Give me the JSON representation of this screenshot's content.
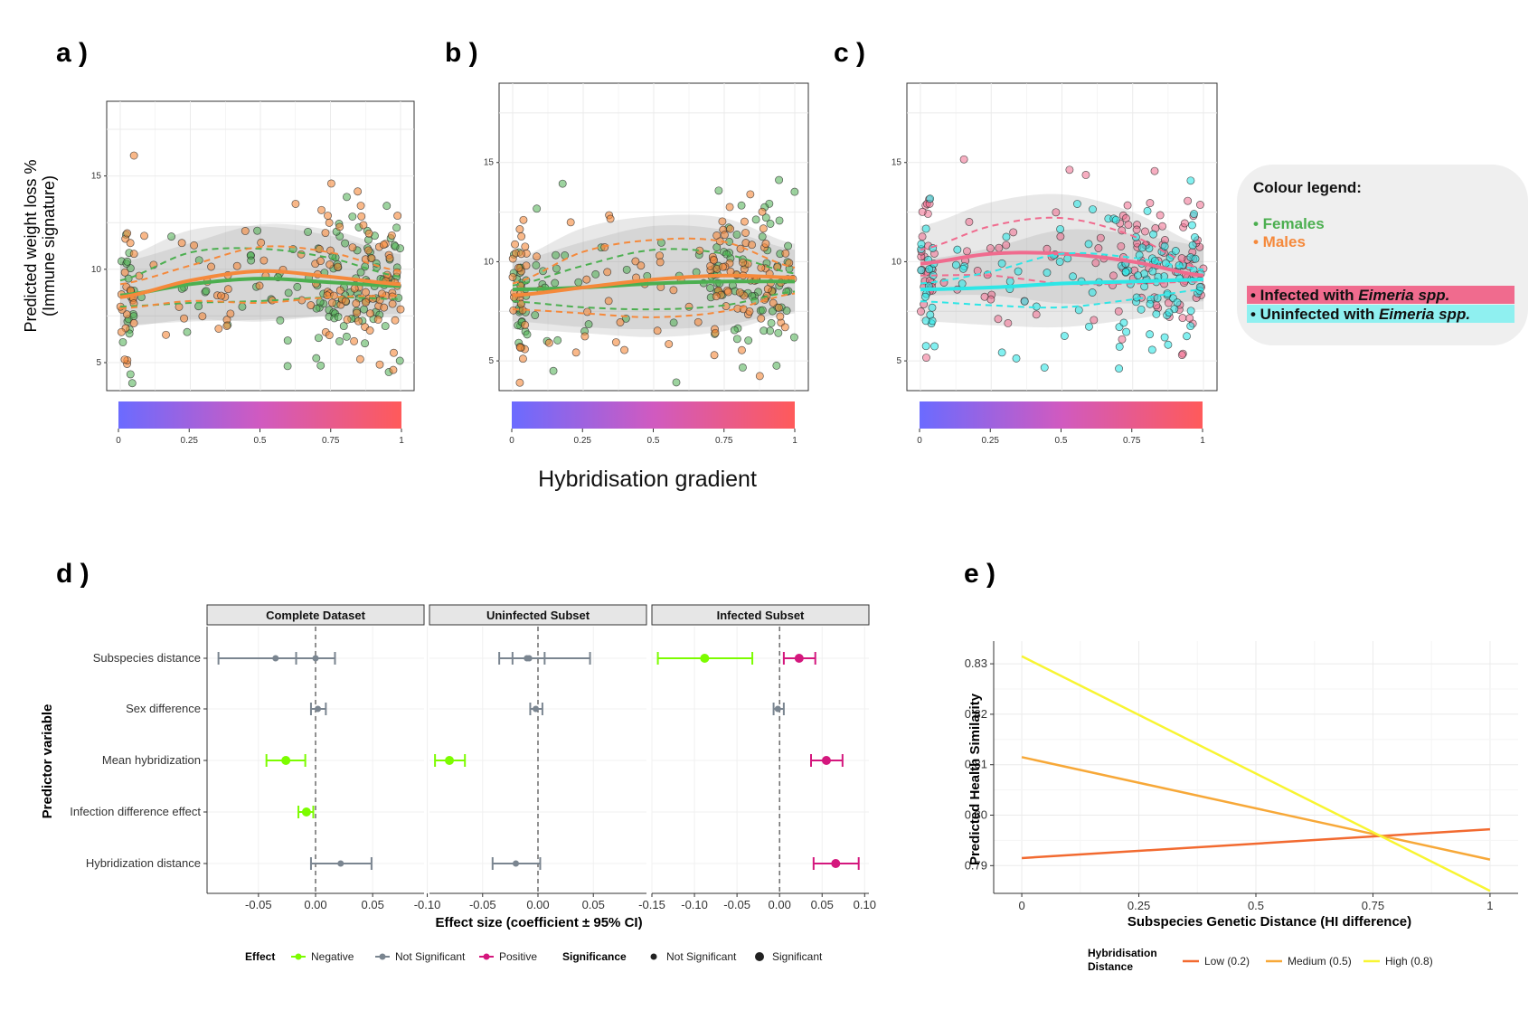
{
  "panel_labels": [
    "a )",
    "b )",
    "c )",
    "d )",
    "e )"
  ],
  "shared_xlabel": "Hybridisation gradient",
  "colour_legend": {
    "title": "Colour legend:",
    "females": "• Females",
    "males": "• Males",
    "infected_prefix": "• Infected with ",
    "infected_italic": "Eimeria spp.",
    "uninfected_prefix": "• Uninfected with ",
    "uninfected_italic": "Eimeria spp."
  },
  "colors": {
    "female": "#4caf50",
    "male": "#f5893b",
    "infected": "#f06b8e",
    "uninfected": "#2ee6e6",
    "negative": "#7cfc00",
    "not_significant": "#7a8590",
    "positive": "#d4177d",
    "low": "#f26a30",
    "medium": "#f7a838",
    "high": "#f8f532"
  },
  "chart_data": [
    {
      "type": "scatter",
      "panel": "a )",
      "ylabel_line1": "Predicted weight loss %",
      "ylabel_line2": "(Immune signature)",
      "ylim": [
        3.5,
        19
      ],
      "yticks": [
        5,
        10,
        15
      ],
      "xlim": [
        0,
        1
      ],
      "colorbar_ticks": [
        "0",
        "0.25",
        "0.5",
        "0.75",
        "1"
      ],
      "series": [
        {
          "group": "female",
          "smooth": [
            [
              0,
              8.6
            ],
            [
              0.25,
              9.2
            ],
            [
              0.5,
              9.5
            ],
            [
              0.75,
              9.3
            ],
            [
              1,
              9.1
            ]
          ],
          "upper": [
            [
              0,
              9.4
            ],
            [
              0.25,
              10.9
            ],
            [
              0.5,
              11.1
            ],
            [
              0.75,
              10.6
            ],
            [
              1,
              9.6
            ]
          ],
          "lower": [
            [
              0,
              8.0
            ],
            [
              0.25,
              8.2
            ],
            [
              0.5,
              8.3
            ],
            [
              0.75,
              8.5
            ],
            [
              1,
              8.4
            ]
          ]
        },
        {
          "group": "male",
          "smooth": [
            [
              0,
              8.5
            ],
            [
              0.25,
              9.4
            ],
            [
              0.5,
              9.9
            ],
            [
              0.75,
              9.6
            ],
            [
              1,
              9.2
            ]
          ],
          "upper": [
            [
              0,
              9.2
            ],
            [
              0.25,
              10.2
            ],
            [
              0.5,
              11.2
            ],
            [
              0.75,
              10.9
            ],
            [
              1,
              9.9
            ]
          ],
          "lower": [
            [
              0,
              7.9
            ],
            [
              0.25,
              8.3
            ],
            [
              0.5,
              8.2
            ],
            [
              0.75,
              8.5
            ],
            [
              1,
              8.6
            ]
          ]
        }
      ]
    },
    {
      "type": "scatter",
      "panel": "b )",
      "ylim": [
        3.5,
        19
      ],
      "yticks": [
        5,
        10,
        15
      ],
      "xlim": [
        0,
        1
      ],
      "colorbar_ticks": [
        "0",
        "0.25",
        "0.5",
        "0.75",
        "1"
      ],
      "series": [
        {
          "group": "female",
          "smooth": [
            [
              0,
              8.6
            ],
            [
              0.25,
              8.7
            ],
            [
              0.5,
              8.9
            ],
            [
              0.75,
              9.0
            ],
            [
              1,
              9.0
            ]
          ],
          "upper": [
            [
              0,
              8.8
            ],
            [
              0.25,
              9.8
            ],
            [
              0.5,
              10.6
            ],
            [
              0.75,
              10.4
            ],
            [
              1,
              9.4
            ]
          ],
          "lower": [
            [
              0,
              8.0
            ],
            [
              0.25,
              7.7
            ],
            [
              0.5,
              7.6
            ],
            [
              0.75,
              7.8
            ],
            [
              1,
              8.5
            ]
          ]
        },
        {
          "group": "male",
          "smooth": [
            [
              0,
              8.3
            ],
            [
              0.25,
              8.7
            ],
            [
              0.5,
              9.1
            ],
            [
              0.75,
              9.3
            ],
            [
              1,
              9.2
            ]
          ],
          "upper": [
            [
              0,
              8.9
            ],
            [
              0.25,
              10.5
            ],
            [
              0.5,
              11.1
            ],
            [
              0.75,
              11.0
            ],
            [
              1,
              9.7
            ]
          ],
          "lower": [
            [
              0,
              7.6
            ],
            [
              0.25,
              7.4
            ],
            [
              0.5,
              7.2
            ],
            [
              0.75,
              7.5
            ],
            [
              1,
              8.4
            ]
          ]
        }
      ]
    },
    {
      "type": "scatter",
      "panel": "c )",
      "ylim": [
        3.5,
        19
      ],
      "yticks": [
        5,
        10,
        15
      ],
      "xlim": [
        0,
        1
      ],
      "colorbar_ticks": [
        "0",
        "0.25",
        "0.5",
        "0.75",
        "1"
      ],
      "series": [
        {
          "group": "infected",
          "smooth": [
            [
              0,
              9.9
            ],
            [
              0.25,
              10.4
            ],
            [
              0.5,
              10.4
            ],
            [
              0.75,
              10.0
            ],
            [
              1,
              9.3
            ]
          ],
          "upper": [
            [
              0,
              10.6
            ],
            [
              0.25,
              11.8
            ],
            [
              0.5,
              12.2
            ],
            [
              0.75,
              11.3
            ],
            [
              1,
              9.6
            ]
          ],
          "lower": [
            [
              0,
              9.3
            ],
            [
              0.25,
              9.3
            ],
            [
              0.5,
              8.9
            ],
            [
              0.75,
              8.9
            ],
            [
              1,
              9.0
            ]
          ]
        },
        {
          "group": "uninfected",
          "smooth": [
            [
              0,
              8.6
            ],
            [
              0.25,
              8.7
            ],
            [
              0.5,
              8.9
            ],
            [
              0.75,
              9.0
            ],
            [
              1,
              9.1
            ]
          ],
          "upper": [
            [
              0,
              8.9
            ],
            [
              0.25,
              9.5
            ],
            [
              0.5,
              10.4
            ],
            [
              0.75,
              10.2
            ],
            [
              1,
              9.6
            ]
          ],
          "lower": [
            [
              0,
              8.0
            ],
            [
              0.25,
              7.8
            ],
            [
              0.5,
              7.7
            ],
            [
              0.75,
              8.1
            ],
            [
              1,
              8.6
            ]
          ]
        }
      ]
    },
    {
      "type": "forest",
      "panel": "d )",
      "ylabel": "Predictor variable",
      "xlabel": "Effect size (coefficient ± 95% CI)",
      "predictors": [
        "Subspecies distance",
        "Sex difference",
        "Mean hybridization",
        "Infection difference effect",
        "Hybridization distance"
      ],
      "facets": [
        {
          "title": "Complete Dataset",
          "xlim": [
            -0.095,
            0.095
          ],
          "xticks": [
            -0.05,
            0.0,
            0.05
          ],
          "xticklabels": [
            "-0.05",
            "0.00",
            "0.05"
          ],
          "rows": [
            {
              "predictor": "Subspecies distance",
              "points": [
                {
                  "est": -0.035,
                  "lo": -0.085,
                  "hi": 0.017,
                  "effect": "Not Significant"
                },
                {
                  "est": 0.0,
                  "lo": -0.017,
                  "hi": 0.017,
                  "effect": "Not Significant"
                }
              ]
            },
            {
              "predictor": "Sex difference",
              "points": [
                {
                  "est": 0.002,
                  "lo": -0.004,
                  "hi": 0.009,
                  "effect": "Not Significant"
                }
              ]
            },
            {
              "predictor": "Mean hybridization",
              "points": [
                {
                  "est": -0.026,
                  "lo": -0.043,
                  "hi": -0.009,
                  "effect": "Negative"
                }
              ]
            },
            {
              "predictor": "Infection difference effect",
              "points": [
                {
                  "est": -0.008,
                  "lo": -0.015,
                  "hi": -0.002,
                  "effect": "Negative"
                }
              ]
            },
            {
              "predictor": "Hybridization distance",
              "points": [
                {
                  "est": 0.022,
                  "lo": -0.004,
                  "hi": 0.049,
                  "effect": "Not Significant"
                }
              ]
            }
          ]
        },
        {
          "title": "Uninfected Subset",
          "xlim": [
            -0.098,
            0.098
          ],
          "xticks": [
            -0.1,
            -0.05,
            0.0,
            0.05
          ],
          "xticklabels": [
            "-0.10",
            "-0.05",
            "0.00",
            "0.05"
          ],
          "rows": [
            {
              "predictor": "Subspecies distance",
              "points": [
                {
                  "est": -0.008,
                  "lo": -0.035,
                  "hi": 0.047,
                  "effect": "Not Significant"
                },
                {
                  "est": -0.01,
                  "lo": -0.023,
                  "hi": 0.006,
                  "effect": "Not Significant"
                }
              ]
            },
            {
              "predictor": "Sex difference",
              "points": [
                {
                  "est": -0.002,
                  "lo": -0.007,
                  "hi": 0.004,
                  "effect": "Not Significant"
                }
              ]
            },
            {
              "predictor": "Mean hybridization",
              "points": [
                {
                  "est": -0.08,
                  "lo": -0.093,
                  "hi": -0.066,
                  "effect": "Negative"
                }
              ]
            },
            {
              "predictor": "Infection difference effect",
              "points": []
            },
            {
              "predictor": "Hybridization distance",
              "points": [
                {
                  "est": -0.02,
                  "lo": -0.041,
                  "hi": 0.002,
                  "effect": "Not Significant"
                }
              ]
            }
          ]
        },
        {
          "title": "Infected Subset",
          "xlim": [
            -0.15,
            0.105
          ],
          "xticks": [
            -0.15,
            -0.1,
            -0.05,
            0.0,
            0.05,
            0.1
          ],
          "xticklabels": [
            "-0.15",
            "-0.10",
            "-0.05",
            "0.00",
            "0.05",
            "0.10"
          ],
          "rows": [
            {
              "predictor": "Subspecies distance",
              "points": [
                {
                  "est": -0.088,
                  "lo": -0.143,
                  "hi": -0.032,
                  "effect": "Negative"
                },
                {
                  "est": 0.023,
                  "lo": 0.005,
                  "hi": 0.042,
                  "effect": "Positive"
                }
              ]
            },
            {
              "predictor": "Sex difference",
              "points": [
                {
                  "est": -0.002,
                  "lo": -0.007,
                  "hi": 0.005,
                  "effect": "Not Significant"
                }
              ]
            },
            {
              "predictor": "Mean hybridization",
              "points": [
                {
                  "est": 0.055,
                  "lo": 0.037,
                  "hi": 0.074,
                  "effect": "Positive"
                }
              ]
            },
            {
              "predictor": "Infection difference effect",
              "points": []
            },
            {
              "predictor": "Hybridization distance",
              "points": [
                {
                  "est": 0.066,
                  "lo": 0.04,
                  "hi": 0.093,
                  "effect": "Positive"
                }
              ]
            }
          ]
        }
      ],
      "legend": {
        "effect_title": "Effect",
        "effect_items": [
          "Negative",
          "Not Significant",
          "Positive"
        ],
        "significance_title": "Significance",
        "significance_items": [
          "Not Significant",
          "Significant"
        ]
      }
    },
    {
      "type": "line",
      "panel": "e )",
      "xlabel": "Subspecies Genetic Distance (HI difference)",
      "ylabel": "Predicted Health Similarity",
      "xlim": [
        -0.06,
        1.06
      ],
      "ylim": [
        0.7845,
        0.8345
      ],
      "xticks": [
        0,
        0.25,
        0.5,
        0.75,
        1
      ],
      "xticklabels": [
        "0",
        "0.25",
        "0.5",
        "0.75",
        "1"
      ],
      "yticks": [
        0.79,
        0.8,
        0.81,
        0.82,
        0.83
      ],
      "yticklabels": [
        "0.79",
        "0.80",
        "0.81",
        "0.82",
        "0.83"
      ],
      "legend_title_line1": "Hybridisation",
      "legend_title_line2": "Distance",
      "series": [
        {
          "name": "Low (0.2)",
          "color_key": "low",
          "x": [
            0,
            1
          ],
          "y": [
            0.7915,
            0.7972
          ]
        },
        {
          "name": "Medium (0.5)",
          "color_key": "medium",
          "x": [
            0,
            1
          ],
          "y": [
            0.8115,
            0.7912
          ]
        },
        {
          "name": "High (0.8)",
          "color_key": "high",
          "x": [
            0,
            1
          ],
          "y": [
            0.8315,
            0.785
          ]
        }
      ]
    }
  ]
}
